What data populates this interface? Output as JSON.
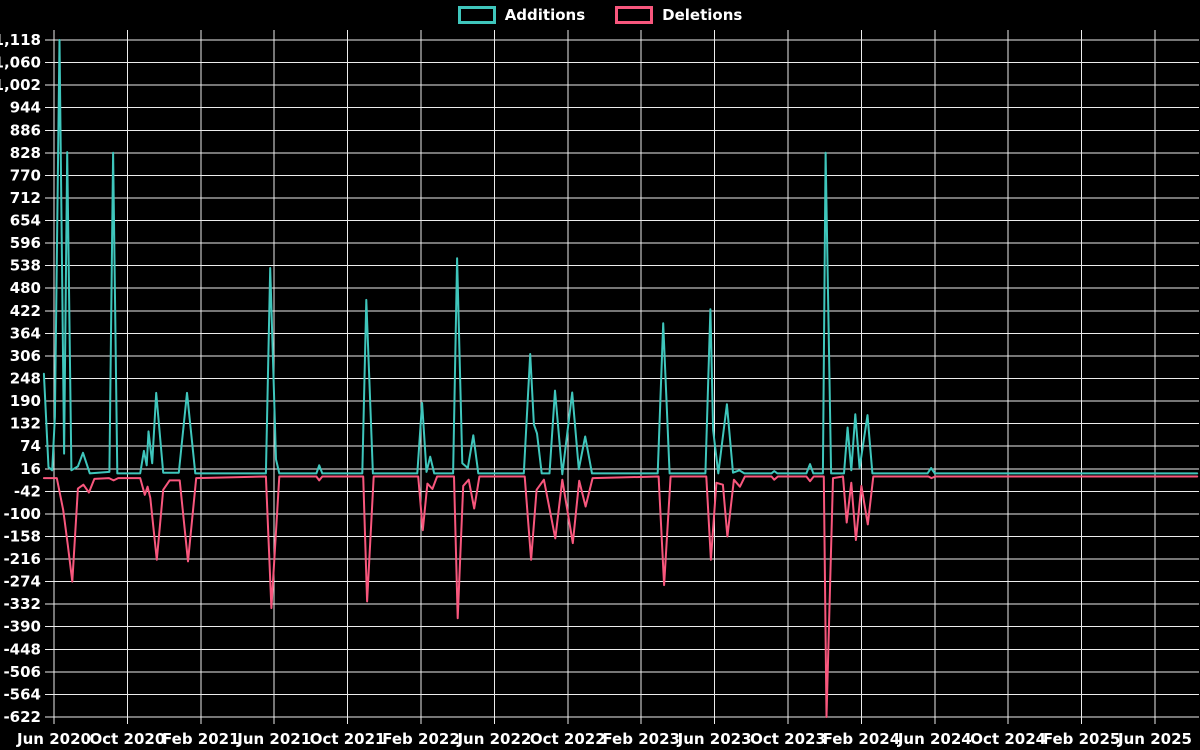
{
  "legend": {
    "items": [
      {
        "label": "Additions",
        "color": "#3fc6bc"
      },
      {
        "label": "Deletions",
        "color": "#f8577d"
      }
    ]
  },
  "chart_data": {
    "type": "line",
    "title": "",
    "background": "#000000",
    "grid": true,
    "legend_position": "top",
    "x_axis": {
      "tick_labels": [
        "Jun 2020",
        "Oct 2020",
        "Feb 2021",
        "Jun 2021",
        "Oct 2021",
        "Feb 2022",
        "Jun 2022",
        "Oct 2022",
        "Feb 2023",
        "Jun 2023",
        "Oct 2023",
        "Feb 2024",
        "Jun 2024",
        "Oct 2024",
        "Feb 2025",
        "Jun 2025"
      ],
      "months_between_ticks": 4,
      "months_span": 60
    },
    "y_axis": {
      "min": -622,
      "max": 1118,
      "tick_step": 58,
      "tick_labels": [
        "1,118",
        "1,060",
        "1,002",
        "944",
        "886",
        "828",
        "770",
        "712",
        "654",
        "596",
        "538",
        "480",
        "422",
        "364",
        "306",
        "248",
        "190",
        "132",
        "74",
        "16",
        "-42",
        "-100",
        "-158",
        "-216",
        "-274",
        "-332",
        "-390",
        "-448",
        "-506",
        "-564",
        "-622"
      ]
    },
    "series": [
      {
        "name": "Additions",
        "color": "#3fc6bc",
        "points": [
          [
            -0.55,
            260
          ],
          [
            -0.3,
            20
          ],
          [
            -0.1,
            12
          ],
          [
            0.05,
            150
          ],
          [
            0.3,
            1118
          ],
          [
            0.55,
            55
          ],
          [
            0.72,
            830
          ],
          [
            0.95,
            12
          ],
          [
            1.3,
            22
          ],
          [
            1.58,
            57
          ],
          [
            1.95,
            4
          ],
          [
            3.02,
            8
          ],
          [
            3.22,
            828
          ],
          [
            3.45,
            4
          ],
          [
            4.7,
            4
          ],
          [
            4.9,
            62
          ],
          [
            5.05,
            25
          ],
          [
            5.15,
            112
          ],
          [
            5.35,
            30
          ],
          [
            5.57,
            211
          ],
          [
            5.95,
            6
          ],
          [
            6.8,
            6
          ],
          [
            7.25,
            211
          ],
          [
            7.7,
            4
          ],
          [
            11.55,
            4
          ],
          [
            11.78,
            532
          ],
          [
            12.1,
            40
          ],
          [
            12.28,
            4
          ],
          [
            14.3,
            4
          ],
          [
            14.45,
            25
          ],
          [
            14.62,
            4
          ],
          [
            16.8,
            4
          ],
          [
            17.02,
            450
          ],
          [
            17.38,
            4
          ],
          [
            19.8,
            4
          ],
          [
            20.06,
            185
          ],
          [
            20.3,
            8
          ],
          [
            20.5,
            47
          ],
          [
            20.72,
            4
          ],
          [
            21.75,
            4
          ],
          [
            21.97,
            557
          ],
          [
            22.25,
            30
          ],
          [
            22.55,
            18
          ],
          [
            22.85,
            102
          ],
          [
            23.12,
            4
          ],
          [
            25.6,
            4
          ],
          [
            25.95,
            311
          ],
          [
            26.15,
            130
          ],
          [
            26.32,
            107
          ],
          [
            26.58,
            4
          ],
          [
            27.0,
            4
          ],
          [
            27.3,
            217
          ],
          [
            27.7,
            2
          ],
          [
            28.24,
            212
          ],
          [
            28.6,
            15
          ],
          [
            28.95,
            99
          ],
          [
            29.32,
            4
          ],
          [
            32.9,
            4
          ],
          [
            33.2,
            390
          ],
          [
            33.55,
            4
          ],
          [
            35.5,
            4
          ],
          [
            35.77,
            426
          ],
          [
            35.92,
            116
          ],
          [
            36.2,
            4
          ],
          [
            36.67,
            182
          ],
          [
            37.0,
            6
          ],
          [
            37.35,
            12
          ],
          [
            37.62,
            4
          ],
          [
            39.1,
            4
          ],
          [
            39.25,
            10
          ],
          [
            39.42,
            4
          ],
          [
            41.0,
            4
          ],
          [
            41.2,
            28
          ],
          [
            41.38,
            4
          ],
          [
            41.9,
            4
          ],
          [
            42.05,
            828
          ],
          [
            42.35,
            4
          ],
          [
            43.05,
            4
          ],
          [
            43.25,
            122
          ],
          [
            43.45,
            12
          ],
          [
            43.67,
            156
          ],
          [
            43.9,
            18
          ],
          [
            44.33,
            154
          ],
          [
            44.6,
            4
          ],
          [
            47.6,
            4
          ],
          [
            47.8,
            18
          ],
          [
            48.0,
            4
          ],
          [
            62.3,
            4
          ]
        ]
      },
      {
        "name": "Deletions",
        "color": "#f8577d",
        "points": [
          [
            -0.55,
            -8
          ],
          [
            0.15,
            -8
          ],
          [
            0.5,
            -90
          ],
          [
            0.75,
            -180
          ],
          [
            1.0,
            -274
          ],
          [
            1.3,
            -35
          ],
          [
            1.6,
            -25
          ],
          [
            1.9,
            -45
          ],
          [
            2.2,
            -10
          ],
          [
            3.0,
            -8
          ],
          [
            3.25,
            -14
          ],
          [
            3.5,
            -8
          ],
          [
            4.7,
            -8
          ],
          [
            4.95,
            -51
          ],
          [
            5.1,
            -30
          ],
          [
            5.25,
            -59
          ],
          [
            5.6,
            -218
          ],
          [
            5.95,
            -38
          ],
          [
            6.3,
            -14
          ],
          [
            6.85,
            -14
          ],
          [
            7.3,
            -222
          ],
          [
            7.75,
            -8
          ],
          [
            11.55,
            -4
          ],
          [
            11.85,
            -342
          ],
          [
            12.28,
            -4
          ],
          [
            14.3,
            -4
          ],
          [
            14.45,
            -14
          ],
          [
            14.62,
            -4
          ],
          [
            16.85,
            -4
          ],
          [
            17.06,
            -325
          ],
          [
            17.42,
            -4
          ],
          [
            19.85,
            -4
          ],
          [
            20.1,
            -142
          ],
          [
            20.35,
            -22
          ],
          [
            20.62,
            -36
          ],
          [
            20.88,
            -4
          ],
          [
            21.8,
            -4
          ],
          [
            22.0,
            -368
          ],
          [
            22.3,
            -28
          ],
          [
            22.6,
            -12
          ],
          [
            22.9,
            -86
          ],
          [
            23.18,
            -4
          ],
          [
            25.65,
            -4
          ],
          [
            26.0,
            -218
          ],
          [
            26.3,
            -38
          ],
          [
            26.7,
            -12
          ],
          [
            27.32,
            -163
          ],
          [
            27.7,
            -12
          ],
          [
            28.27,
            -175
          ],
          [
            28.62,
            -15
          ],
          [
            28.97,
            -81
          ],
          [
            29.35,
            -8
          ],
          [
            32.95,
            -4
          ],
          [
            33.25,
            -283
          ],
          [
            33.6,
            -4
          ],
          [
            35.55,
            -4
          ],
          [
            35.8,
            -218
          ],
          [
            36.1,
            -20
          ],
          [
            36.45,
            -25
          ],
          [
            36.7,
            -158
          ],
          [
            37.05,
            -12
          ],
          [
            37.38,
            -30
          ],
          [
            37.65,
            -4
          ],
          [
            39.1,
            -4
          ],
          [
            39.25,
            -12
          ],
          [
            39.45,
            -4
          ],
          [
            41.0,
            -4
          ],
          [
            41.2,
            -16
          ],
          [
            41.4,
            -4
          ],
          [
            41.95,
            -4
          ],
          [
            42.1,
            -622
          ],
          [
            42.45,
            -8
          ],
          [
            43.0,
            -4
          ],
          [
            43.2,
            -122
          ],
          [
            43.45,
            -20
          ],
          [
            43.7,
            -167
          ],
          [
            44.0,
            -28
          ],
          [
            44.35,
            -127
          ],
          [
            44.65,
            -4
          ],
          [
            47.65,
            -4
          ],
          [
            47.82,
            -8
          ],
          [
            48.02,
            -4
          ],
          [
            62.3,
            -4
          ]
        ]
      }
    ]
  }
}
